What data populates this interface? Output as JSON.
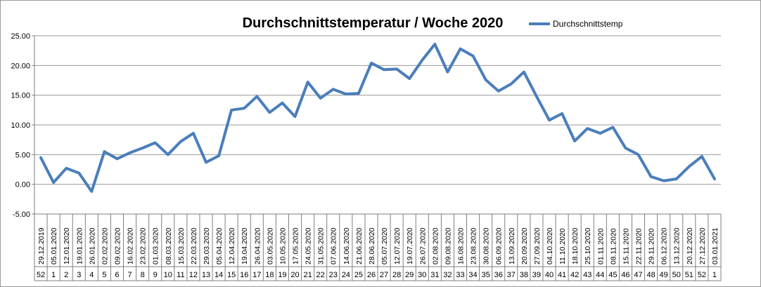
{
  "chart_data": {
    "type": "line",
    "title": "Durchschnittstemperatur / Woche 2020",
    "xlabel": "",
    "ylabel": "",
    "ylim": [
      -5,
      25
    ],
    "yticks": [
      "25.00",
      "20.00",
      "15.00",
      "10.00",
      "5.00",
      "0.00",
      "-5.00"
    ],
    "grid": true,
    "legend_position": "top-right",
    "color": "#4a7ebb",
    "categories": [
      "29.12.2019",
      "05.01.2020",
      "12.01.2020",
      "19.01.2020",
      "26.01.2020",
      "02.02.2020",
      "09.02.2020",
      "16.02.2020",
      "23.02.2020",
      "01.03.2020",
      "08.03.2020",
      "15.03.2020",
      "22.03.2020",
      "29.03.2020",
      "05.04.2020",
      "12.04.2020",
      "19.04.2020",
      "26.04.2020",
      "03.05.2020",
      "10.05.2020",
      "17.05.2020",
      "24.05.2020",
      "31.05.2020",
      "07.06.2020",
      "14.06.2020",
      "21.06.2020",
      "28.06.2020",
      "05.07.2020",
      "12.07.2020",
      "19.07.2020",
      "26.07.2020",
      "02.08.2020",
      "09.08.2020",
      "16.08.2020",
      "23.08.2020",
      "30.08.2020",
      "06.09.2020",
      "13.09.2020",
      "20.09.2020",
      "27.09.2020",
      "04.10.2020",
      "11.10.2020",
      "18.10.2020",
      "25.10.2020",
      "01.11.2020",
      "08.11.2020",
      "15.11.2020",
      "22.11.2020",
      "29.11.2020",
      "06.12.2020",
      "13.12.2020",
      "20.12.2020",
      "27.12.2020",
      "03.01.2021"
    ],
    "weeks": [
      "52",
      "1",
      "2",
      "3",
      "4",
      "5",
      "6",
      "7",
      "8",
      "9",
      "10",
      "11",
      "12",
      "13",
      "14",
      "15",
      "16",
      "17",
      "18",
      "19",
      "20",
      "21",
      "22",
      "23",
      "24",
      "25",
      "26",
      "27",
      "28",
      "29",
      "30",
      "31",
      "32",
      "33",
      "34",
      "35",
      "36",
      "37",
      "38",
      "39",
      "40",
      "41",
      "42",
      "43",
      "44",
      "45",
      "46",
      "47",
      "48",
      "49",
      "50",
      "51",
      "52",
      "1"
    ],
    "series": [
      {
        "name": "Durchschnittstemp",
        "values": [
          4.5,
          0.3,
          2.7,
          1.9,
          -1.2,
          5.5,
          4.3,
          5.3,
          6.1,
          7.0,
          5.0,
          7.2,
          8.6,
          3.7,
          4.8,
          12.5,
          12.8,
          14.8,
          12.1,
          13.7,
          11.4,
          17.2,
          14.5,
          16.0,
          15.2,
          15.3,
          20.4,
          19.3,
          19.4,
          17.8,
          20.9,
          23.6,
          18.9,
          22.8,
          21.6,
          17.6,
          15.7,
          16.9,
          18.9,
          14.8,
          10.8,
          11.9,
          7.3,
          9.4,
          8.6,
          9.6,
          6.1,
          5.0,
          1.3,
          0.6,
          0.9,
          3.0,
          4.7,
          0.9
        ]
      }
    ]
  }
}
